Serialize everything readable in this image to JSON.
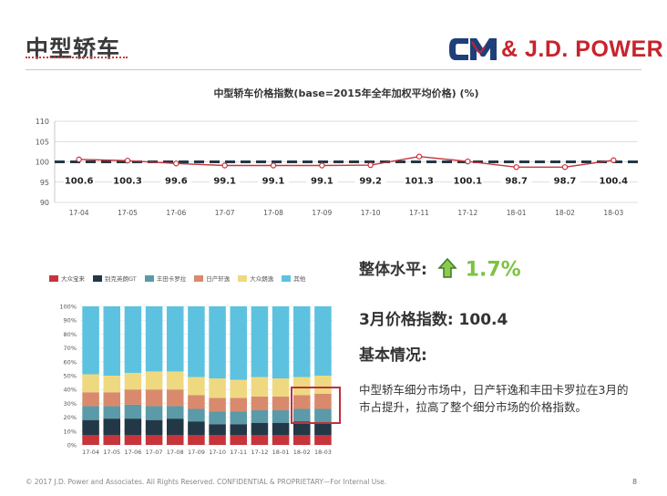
{
  "page": {
    "title": "中型轿车",
    "brand": "& J.D. POWER",
    "footer": "© 2017 J.D. Power and Associates. All Rights Reserved. CONFIDENTIAL & PROPRIETARY—For Internal Use.",
    "page_number": "8"
  },
  "summary": {
    "overall_label": "整体水平:",
    "overall_value": "1.7%",
    "march_index": "3月价格指数: 100.4",
    "basic_label": "基本情况:",
    "description": "中型轿车细分市场中，日产轩逸和丰田卡罗拉在3月的市占提升，拉高了整个细分市场的价格指数。"
  },
  "colors": {
    "line": "#c8343b",
    "baseline": "#233846",
    "accent_green": "#7cc341",
    "highlight_box": "#c0303c"
  },
  "chart_data": [
    {
      "type": "line",
      "title": "中型轿车价格指数(base=2015年全年加权平均价格) (%)",
      "categories": [
        "17-04",
        "17-05",
        "17-06",
        "17-07",
        "17-08",
        "17-09",
        "17-10",
        "17-11",
        "17-12",
        "18-01",
        "18-02",
        "18-03"
      ],
      "series": [
        {
          "values": [
            100.6,
            100.3,
            99.6,
            99.1,
            99.1,
            99.1,
            99.2,
            101.3,
            100.1,
            98.7,
            98.7,
            100.4
          ]
        }
      ],
      "data_labels": [
        "100.6",
        "100.3",
        "99.6",
        "99.1",
        "99.1",
        "99.1",
        "99.2",
        "101.3",
        "100.1",
        "98.7",
        "98.7",
        "100.4"
      ],
      "reference_line": 100,
      "yticks": [
        "110",
        "105",
        "100",
        "95",
        "90"
      ],
      "ylim": [
        90,
        110
      ],
      "grid": true
    },
    {
      "type": "bar",
      "stacked": true,
      "percent": true,
      "categories": [
        "17-04",
        "17-05",
        "17-06",
        "17-07",
        "17-08",
        "17-09",
        "17-10",
        "17-11",
        "17-12",
        "18-01",
        "18-02",
        "18-03"
      ],
      "series": [
        {
          "name": "大众宝来",
          "color": "#c8343b",
          "values": [
            7,
            7,
            7,
            7,
            7,
            7,
            7,
            7,
            7,
            7,
            7,
            7
          ]
        },
        {
          "name": "别克英朗GT",
          "color": "#233846",
          "values": [
            11,
            12,
            12,
            11,
            12,
            10,
            8,
            8,
            9,
            9,
            10,
            9
          ]
        },
        {
          "name": "丰田卡罗拉",
          "color": "#5b9aa8",
          "values": [
            10,
            9,
            10,
            10,
            9,
            9,
            9,
            9,
            9,
            9,
            9,
            10
          ]
        },
        {
          "name": "日产轩逸",
          "color": "#d98a6d",
          "values": [
            10,
            10,
            11,
            12,
            12,
            10,
            10,
            10,
            10,
            10,
            10,
            11
          ]
        },
        {
          "name": "大众朗逸",
          "color": "#efd980",
          "values": [
            13,
            12,
            12,
            13,
            13,
            13,
            14,
            13,
            14,
            13,
            13,
            13
          ]
        },
        {
          "name": "其他",
          "color": "#5dc2e0",
          "values": [
            49,
            50,
            48,
            47,
            47,
            51,
            52,
            53,
            51,
            52,
            51,
            50
          ]
        }
      ],
      "yticks": [
        "100%",
        "90%",
        "80%",
        "70%",
        "60%",
        "50%",
        "40%",
        "30%",
        "20%",
        "10%",
        "0%"
      ],
      "ylim": [
        0,
        100
      ]
    }
  ]
}
